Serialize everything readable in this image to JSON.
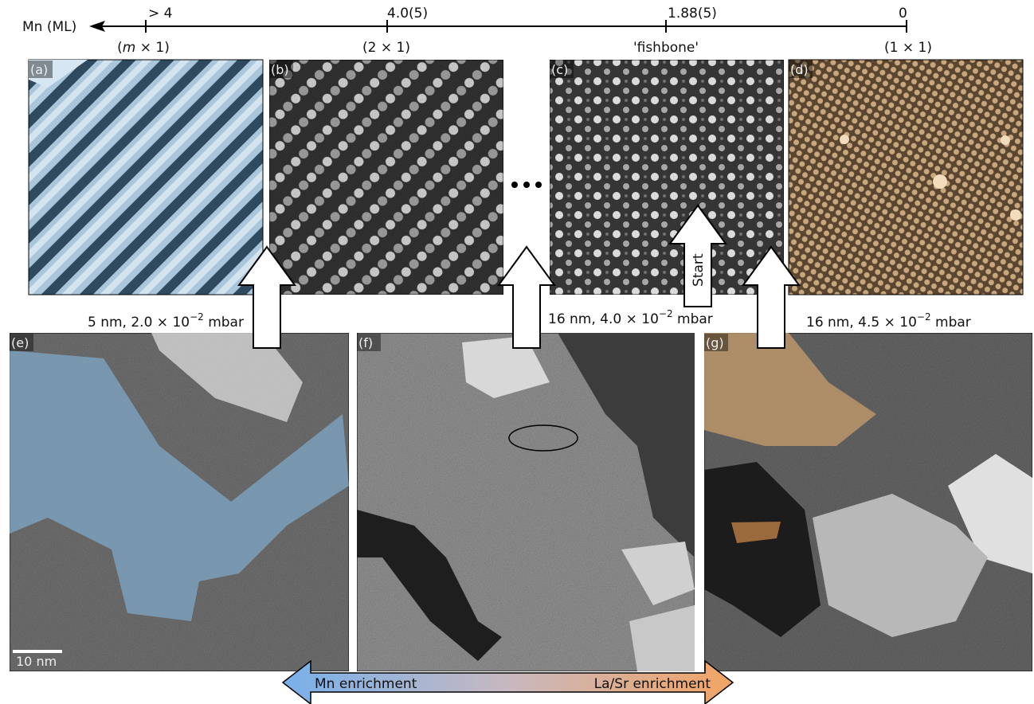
{
  "axis": {
    "label": "Mn (ML)",
    "ticks": [
      "> 4",
      "4.0(5)",
      "1.88(5)",
      "0"
    ]
  },
  "phases": [
    {
      "pre": "(",
      "italic": "m",
      "post": " × 1)"
    },
    "(2 × 1)",
    "'fishbone'",
    "(1 × 1)"
  ],
  "panels": [
    "(a)",
    "(b)",
    "(c)",
    "(d)",
    "(e)",
    "(f)",
    "(g)"
  ],
  "captions": [
    {
      "text": "5 nm, 2.0 × 10",
      "exp": "−2",
      "unit": " mbar"
    },
    {
      "text": "16 nm, 4.0 × 10",
      "exp": "−2",
      "unit": " mbar"
    },
    {
      "text": "16 nm, 4.5 × 10",
      "exp": "−2",
      "unit": " mbar"
    }
  ],
  "start": "Start",
  "scale_bar": "10 nm",
  "enrichment": {
    "left": "Mn enrichment",
    "right": "La/Sr enrichment"
  }
}
